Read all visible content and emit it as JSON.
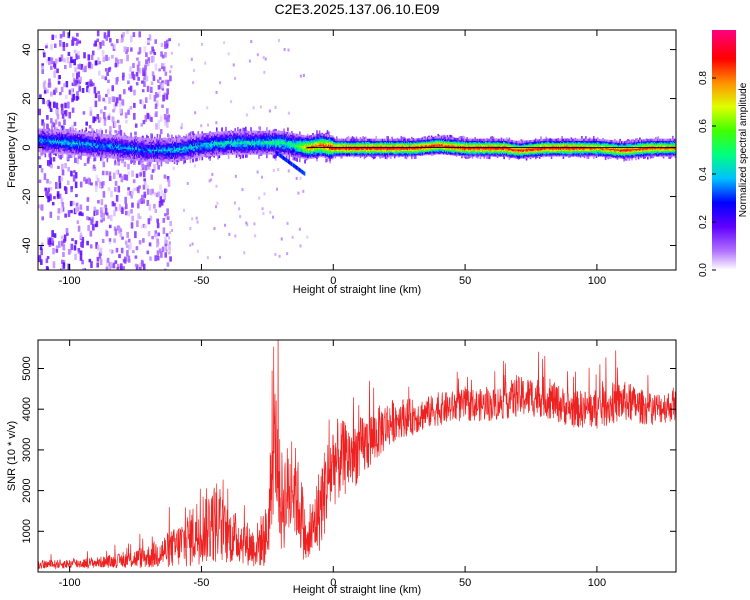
{
  "title": "C2E3.2025.137.06.10.E09",
  "chart_data": [
    {
      "type": "heatmap",
      "xlabel": "Height of straight line (km)",
      "ylabel": "Frequency (Hz)",
      "xlim": [
        -112,
        130
      ],
      "ylim": [
        -50,
        48
      ],
      "xticks": [
        -100,
        -50,
        0,
        50,
        100
      ],
      "yticks": [
        -40,
        -20,
        0,
        20,
        40
      ],
      "colorbar": {
        "label": "Normalized spectral amplitude",
        "range": [
          0.0,
          1.0
        ],
        "ticks": [
          "0.0",
          "0.2",
          "0.4",
          "0.6",
          "0.8"
        ],
        "colors": [
          "#ffffff",
          "#8000ff",
          "#0000ff",
          "#00ffff",
          "#00ff00",
          "#ffff00",
          "#ff8000",
          "#ff0000",
          "#ff0080"
        ]
      },
      "description_points": {
        "ridge_x": [
          -112,
          -100,
          -90,
          -80,
          -70,
          -60,
          -50,
          -40,
          -30,
          -20,
          -15,
          -10,
          -5,
          0,
          10,
          20,
          30,
          40,
          50,
          60,
          65,
          70,
          80,
          90,
          100,
          110,
          120,
          130
        ],
        "ridge_freq": [
          3,
          2,
          1,
          0,
          -1,
          -1,
          1,
          2,
          2,
          2,
          1,
          0,
          1,
          0,
          0,
          0,
          0,
          1,
          0,
          0,
          0,
          -1,
          0,
          0,
          0,
          -1,
          0,
          0
        ],
        "ridge_amplitude": [
          0.35,
          0.4,
          0.35,
          0.35,
          0.35,
          0.4,
          0.4,
          0.45,
          0.45,
          0.5,
          0.5,
          0.8,
          0.85,
          0.95,
          0.95,
          0.95,
          0.95,
          0.9,
          0.95,
          0.95,
          0.95,
          0.9,
          0.95,
          0.95,
          0.85,
          0.9,
          0.9,
          0.85
        ]
      }
    },
    {
      "type": "line",
      "xlabel": "Height of straight line (km)",
      "ylabel": "SNR (10 * v/v)",
      "xlim": [
        -112,
        130
      ],
      "ylim": [
        0,
        5700
      ],
      "xticks": [
        -100,
        -50,
        0,
        50,
        100
      ],
      "yticks": [
        1000,
        2000,
        3000,
        4000,
        5000
      ],
      "color": "#ff0000",
      "series": [
        {
          "x": [
            -112,
            -100,
            -90,
            -80,
            -70,
            -60,
            -55,
            -50,
            -45,
            -40,
            -35,
            -30,
            -25,
            -22,
            -20,
            -15,
            -12,
            -10,
            -5,
            0,
            5,
            10,
            15,
            20,
            25,
            30,
            35,
            40,
            50,
            60,
            70,
            80,
            90,
            100,
            110,
            120,
            130
          ],
          "y": [
            180,
            200,
            230,
            280,
            380,
            600,
            800,
            1100,
            1200,
            900,
            800,
            600,
            900,
            3300,
            1700,
            2100,
            1400,
            600,
            1600,
            2700,
            2800,
            3000,
            3300,
            3600,
            3800,
            3800,
            3900,
            4000,
            4100,
            4100,
            4300,
            4300,
            4000,
            4000,
            4200,
            4000,
            4100
          ],
          "spread": [
            100,
            120,
            130,
            180,
            300,
            500,
            700,
            900,
            1000,
            700,
            600,
            500,
            800,
            1500,
            1300,
            1200,
            1000,
            500,
            1100,
            1100,
            900,
            800,
            700,
            600,
            500,
            450,
            400,
            400,
            400,
            400,
            500,
            500,
            450,
            500,
            500,
            400,
            400
          ]
        }
      ]
    }
  ]
}
